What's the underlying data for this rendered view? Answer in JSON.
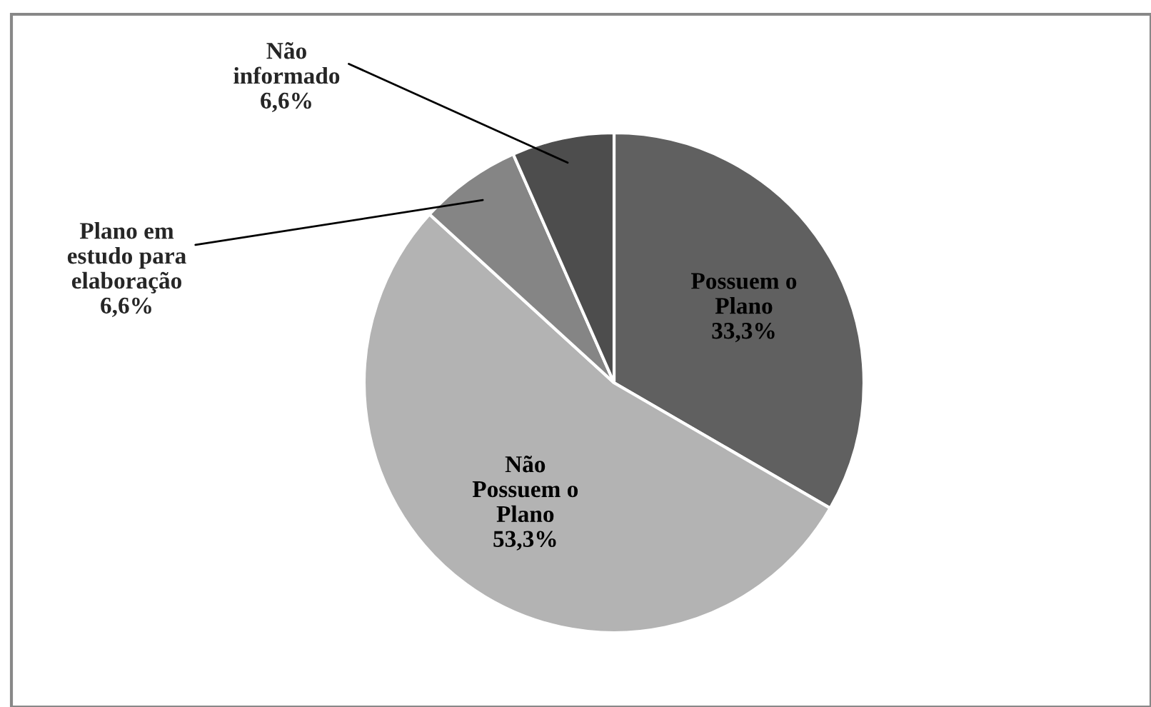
{
  "chart_data": {
    "type": "pie",
    "categories": [
      "Possuem o\nPlano",
      "Não\nPossuem o\nPlano",
      "Plano em\nestudo para\nelaboração",
      "Não\ninformado"
    ],
    "values": [
      33.3,
      53.3,
      6.6,
      6.6
    ],
    "value_labels": [
      "33,3%",
      "53,3%",
      "6,6%",
      "6,6%"
    ],
    "colors": [
      "#606060",
      "#b3b3b3",
      "#858585",
      "#4d4d4d"
    ]
  }
}
